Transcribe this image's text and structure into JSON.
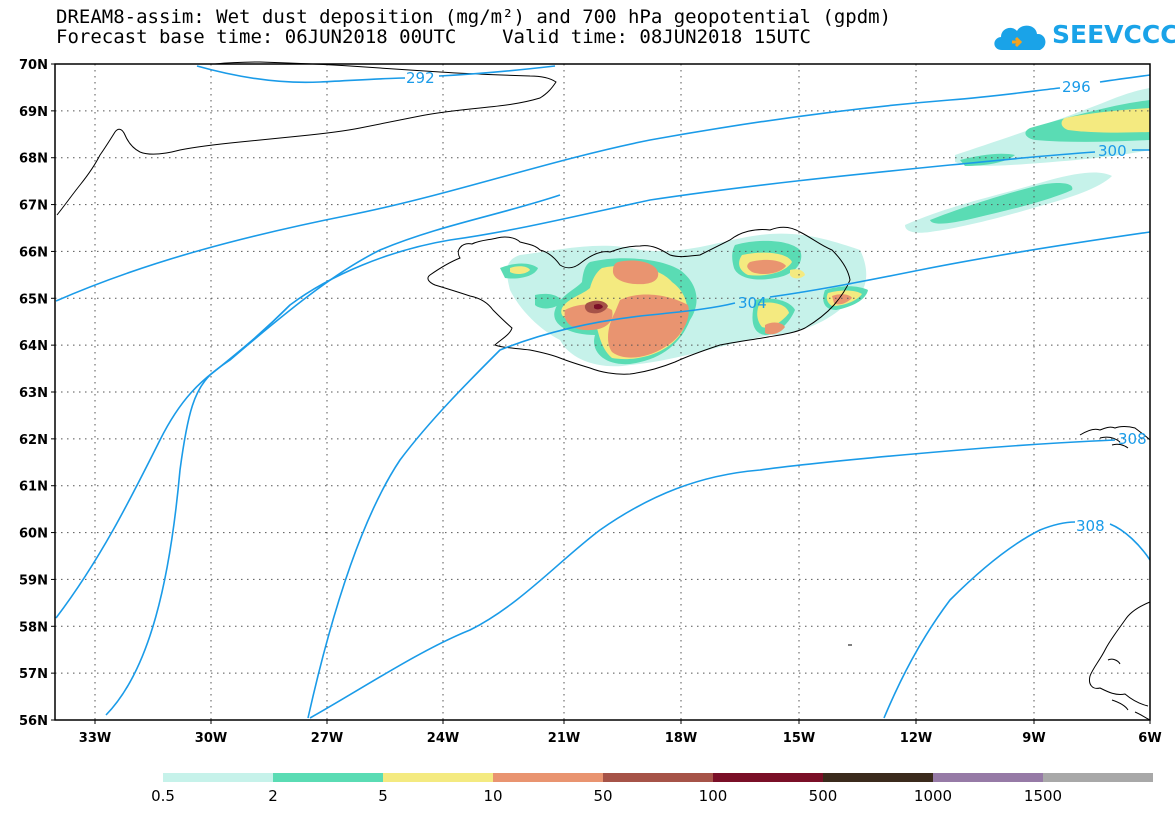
{
  "title": {
    "line1": "DREAM8-assim: Wet dust deposition (mg/m²) and 700 hPa geopotential (gpdm)",
    "line2": "Forecast base time: 06JUN2018 00UTC    Valid time: 08JUN2018 15UTC"
  },
  "logo": {
    "text": "SEEVCCC",
    "icon": "cloud-icon"
  },
  "map": {
    "lat_labels": [
      "70N",
      "69N",
      "68N",
      "67N",
      "66N",
      "65N",
      "64N",
      "63N",
      "62N",
      "61N",
      "60N",
      "59N",
      "58N",
      "57N",
      "56N"
    ],
    "lon_labels": [
      "33W",
      "30W",
      "27W",
      "24W",
      "21W",
      "18W",
      "15W",
      "12W",
      "9W",
      "6W"
    ],
    "contour_labels": [
      "292",
      "296",
      "300",
      "304",
      "308",
      "308"
    ]
  },
  "colorbar": {
    "labels": [
      "0.5",
      "2",
      "5",
      "10",
      "50",
      "100",
      "500",
      "1000",
      "1500"
    ],
    "colors": [
      "#c6f2ea",
      "#5adcb4",
      "#f4ea80",
      "#e99470",
      "#a65348",
      "#7a0f27",
      "#3b2a1c",
      "#967aa6",
      "#a8a8a8"
    ]
  }
}
